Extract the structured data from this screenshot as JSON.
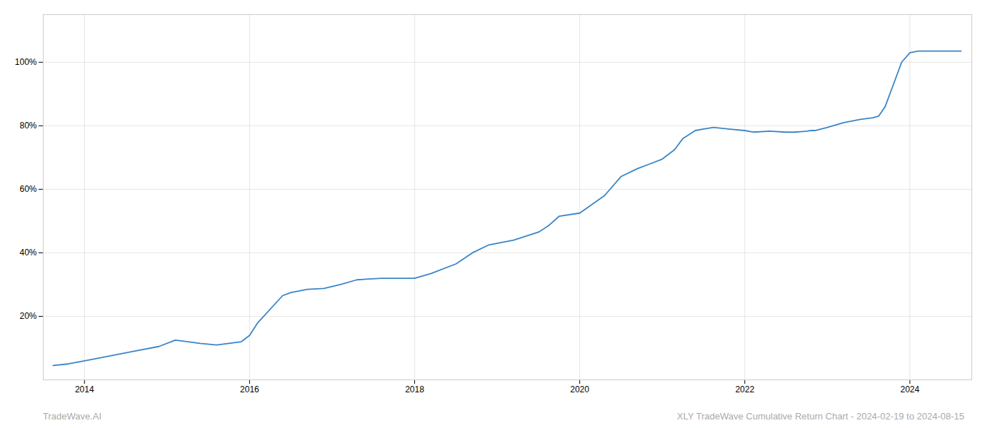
{
  "chart_data": {
    "type": "line",
    "x": [
      2013.62,
      2013.8,
      2014.0,
      2014.3,
      2014.6,
      2014.9,
      2015.1,
      2015.4,
      2015.6,
      2015.9,
      2016.0,
      2016.1,
      2016.4,
      2016.5,
      2016.7,
      2016.9,
      2017.1,
      2017.3,
      2017.6,
      2017.8,
      2018.0,
      2018.2,
      2018.5,
      2018.7,
      2018.9,
      2019.0,
      2019.2,
      2019.5,
      2019.62,
      2019.75,
      2020.0,
      2020.3,
      2020.5,
      2020.7,
      2020.85,
      2021.0,
      2021.15,
      2021.25,
      2021.4,
      2021.5,
      2021.62,
      2021.8,
      2022.0,
      2022.1,
      2022.3,
      2022.5,
      2022.6,
      2022.7,
      2022.75,
      2022.8,
      2022.85,
      2023.0,
      2023.2,
      2023.4,
      2023.55,
      2023.62,
      2023.7,
      2023.8,
      2023.9,
      2024.0,
      2024.1,
      2024.3,
      2024.5,
      2024.62
    ],
    "values": [
      4.5,
      5.0,
      6.0,
      7.5,
      9.0,
      10.5,
      12.5,
      11.5,
      11.0,
      12.0,
      14.0,
      18.0,
      26.5,
      27.5,
      28.5,
      28.8,
      30.0,
      31.5,
      32.0,
      32.0,
      32.0,
      33.5,
      36.5,
      40.0,
      42.5,
      43.0,
      44.0,
      46.5,
      48.5,
      51.5,
      52.5,
      58.0,
      64.0,
      66.5,
      68.0,
      69.5,
      72.5,
      76.0,
      78.5,
      79.0,
      79.5,
      79.0,
      78.5,
      78.0,
      78.3,
      78.0,
      78.0,
      78.2,
      78.3,
      78.5,
      78.5,
      79.5,
      81.0,
      82.0,
      82.5,
      83.0,
      86.0,
      93.0,
      100.0,
      103.0,
      103.5,
      103.5,
      103.5,
      103.5
    ],
    "color": "#3a85c7",
    "xlim": [
      2013.5,
      2024.75
    ],
    "xticks": [
      2014,
      2016,
      2018,
      2020,
      2022,
      2024
    ],
    "ylim": [
      0,
      115
    ],
    "yticks": [
      {
        "value": 20,
        "label": "20%"
      },
      {
        "value": 40,
        "label": "40%"
      },
      {
        "value": 60,
        "label": "60%"
      },
      {
        "value": 80,
        "label": "80%"
      },
      {
        "value": 100,
        "label": "100%"
      }
    ],
    "grid": true,
    "annotations": [
      "TradeWave.AI",
      "XLY TradeWave Cumulative Return Chart - 2024-02-19 to 2024-08-15"
    ]
  }
}
